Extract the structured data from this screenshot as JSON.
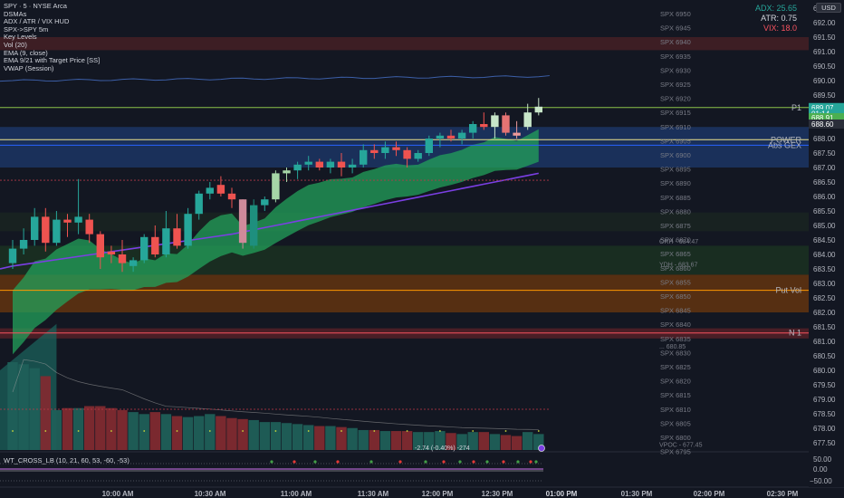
{
  "legend": {
    "title": "SPY · 5 · NYSE Arca",
    "indicators": [
      "DSMAs",
      "ADX / ATR / VIX HUD",
      "SPX->SPY 5m",
      "Key Levels",
      "Vol (20)",
      "EMA (9, close)",
      "EMA 9/21 with Target Price [SS]",
      "VWAP (Session)"
    ]
  },
  "hud": {
    "adx": "ADX: 25.65",
    "atr": "ATR: 0.75",
    "vix": "VIX: 18.0",
    "adx_color": "#26a69a",
    "atr_color": "#d1d4dc",
    "vix_color": "#f7525f"
  },
  "currency_button": "USD",
  "price_axis": [
    "692.50",
    "692.00",
    "691.50",
    "691.00",
    "690.50",
    "690.00",
    "689.50",
    "689.00",
    "688.50",
    "688.00",
    "687.50",
    "687.00",
    "686.50",
    "686.00",
    "685.50",
    "685.00",
    "684.50",
    "684.00",
    "683.50",
    "683.00",
    "682.50",
    "682.00",
    "681.50",
    "681.00",
    "680.50",
    "680.00",
    "679.50",
    "679.00",
    "678.50",
    "678.00",
    "677.50"
  ],
  "spx_labels": [
    "SPX 6950",
    "SPX 6945",
    "SPX 6940",
    "SPX 6935",
    "SPX 6930",
    "SPX 6925",
    "SPX 6920",
    "SPX 6915",
    "SPX 6910",
    "SPX 6905",
    "SPX 6900",
    "SPX 6895",
    "SPX 6890",
    "SPX 6885",
    "SPX 6880",
    "SPX 6875",
    "SPX 6870",
    "SPX 6865",
    "SPX 6860",
    "SPX 6855",
    "SPX 6850",
    "SPX 6845",
    "SPX 6840",
    "SPX 6835",
    "SPX 6830",
    "SPX 6825",
    "SPX 6820",
    "SPX 6815",
    "SPX 6810",
    "SPX 6805",
    "SPX 6800",
    "SPX 6795"
  ],
  "levels": [
    {
      "label": "P1",
      "value": "689.07",
      "price": 689.07,
      "color": "#8bc34a"
    },
    {
      "label": "POWER",
      "value": "687.96",
      "price": 687.96,
      "color": "#f0e68c"
    },
    {
      "label": "Abs GEX",
      "value": "687.77",
      "price": 687.77,
      "color": "#2962ff"
    },
    {
      "label": "Put Vol",
      "value": "682.76",
      "price": 682.76,
      "color": "#ff9800"
    },
    {
      "label": "N 1",
      "value": "681.29",
      "price": 681.29,
      "color": "#f7525f"
    }
  ],
  "price_tags": [
    {
      "value": "689.07",
      "price": 689.07,
      "color": "#26a69a"
    },
    {
      "value": "01:14",
      "price": 688.86,
      "color": "#26a69a"
    },
    {
      "value": "688.91",
      "price": 688.72,
      "color": "#4caf50"
    },
    {
      "value": "688.60",
      "price": 688.5,
      "color": "#2a2e39"
    }
  ],
  "key_level_texts": [
    {
      "text": "ORH - 684.47",
      "price": 684.47
    },
    {
      "text": "YDH - 683.67",
      "price": 683.67
    },
    {
      "text": "... 680.85",
      "price": 680.85
    },
    {
      "text": "VPOC - 677.45",
      "price": 677.45
    }
  ],
  "volume_annotation": "-2.74 (-0.40%) -274",
  "oscillator": {
    "label": "WT_CROSS_LB (10, 21, 60, 53, -60, -53)",
    "axis": [
      "50.00",
      "0.00",
      "−50.00"
    ]
  },
  "time_axis": [
    "10:00 AM",
    "10:30 AM",
    "11:00 AM",
    "11:30 AM",
    "12:00 PM",
    "12:30 PM",
    "01:00 PM",
    "01:30 PM",
    "02:00 PM",
    "02:30 PM"
  ],
  "chart_data": {
    "type": "candlestick",
    "symbol": "SPY",
    "interval": "5",
    "ylim": [
      677.25,
      692.75
    ],
    "candles": [
      {
        "o": 683.7,
        "h": 684.5,
        "l": 683.5,
        "c": 684.2
      },
      {
        "o": 684.2,
        "h": 684.9,
        "l": 684.0,
        "c": 684.5
      },
      {
        "o": 684.5,
        "h": 685.6,
        "l": 684.3,
        "c": 685.3
      },
      {
        "o": 685.3,
        "h": 685.6,
        "l": 684.1,
        "c": 684.4
      },
      {
        "o": 684.4,
        "h": 685.5,
        "l": 684.3,
        "c": 685.2
      },
      {
        "o": 685.2,
        "h": 685.4,
        "l": 684.6,
        "c": 685.1
      },
      {
        "o": 685.1,
        "h": 686.6,
        "l": 684.7,
        "c": 685.3
      },
      {
        "o": 685.2,
        "h": 685.4,
        "l": 684.4,
        "c": 684.7
      },
      {
        "o": 684.7,
        "h": 684.8,
        "l": 683.5,
        "c": 683.9
      },
      {
        "o": 684.1,
        "h": 684.3,
        "l": 683.7,
        "c": 684.0
      },
      {
        "o": 684.0,
        "h": 684.5,
        "l": 683.4,
        "c": 683.7
      },
      {
        "o": 683.6,
        "h": 683.9,
        "l": 683.4,
        "c": 683.8
      },
      {
        "o": 683.8,
        "h": 684.7,
        "l": 683.7,
        "c": 684.6
      },
      {
        "o": 684.6,
        "h": 685.0,
        "l": 683.9,
        "c": 684.0
      },
      {
        "o": 684.0,
        "h": 685.5,
        "l": 683.9,
        "c": 684.9
      },
      {
        "o": 684.9,
        "h": 685.4,
        "l": 684.2,
        "c": 684.3
      },
      {
        "o": 684.3,
        "h": 685.6,
        "l": 684.2,
        "c": 685.4
      },
      {
        "o": 685.4,
        "h": 686.2,
        "l": 685.2,
        "c": 686.1
      },
      {
        "o": 686.1,
        "h": 686.5,
        "l": 685.9,
        "c": 686.3
      },
      {
        "o": 686.4,
        "h": 686.7,
        "l": 686.0,
        "c": 686.1
      },
      {
        "o": 686.1,
        "h": 686.3,
        "l": 685.6,
        "c": 685.9
      },
      {
        "o": 685.9,
        "h": 685.9,
        "l": 684.2,
        "c": 684.4
      },
      {
        "o": 684.3,
        "h": 685.9,
        "l": 684.2,
        "c": 685.7
      },
      {
        "o": 685.7,
        "h": 686.0,
        "l": 685.5,
        "c": 685.9
      },
      {
        "o": 685.9,
        "h": 686.9,
        "l": 685.8,
        "c": 686.8
      },
      {
        "o": 686.8,
        "h": 687.0,
        "l": 686.5,
        "c": 686.9
      },
      {
        "o": 686.9,
        "h": 687.2,
        "l": 686.6,
        "c": 687.1
      },
      {
        "o": 687.1,
        "h": 687.4,
        "l": 686.9,
        "c": 687.2
      },
      {
        "o": 687.2,
        "h": 687.3,
        "l": 686.9,
        "c": 687.0
      },
      {
        "o": 687.0,
        "h": 687.3,
        "l": 686.8,
        "c": 687.2
      },
      {
        "o": 687.2,
        "h": 687.5,
        "l": 686.7,
        "c": 687.0
      },
      {
        "o": 687.0,
        "h": 687.3,
        "l": 686.8,
        "c": 687.1
      },
      {
        "o": 687.1,
        "h": 687.8,
        "l": 687.0,
        "c": 687.6
      },
      {
        "o": 687.6,
        "h": 687.8,
        "l": 687.3,
        "c": 687.5
      },
      {
        "o": 687.5,
        "h": 687.9,
        "l": 687.3,
        "c": 687.7
      },
      {
        "o": 687.7,
        "h": 687.9,
        "l": 687.4,
        "c": 687.6
      },
      {
        "o": 687.6,
        "h": 687.7,
        "l": 687.0,
        "c": 687.3
      },
      {
        "o": 687.3,
        "h": 687.6,
        "l": 687.2,
        "c": 687.5
      },
      {
        "o": 687.5,
        "h": 688.1,
        "l": 687.4,
        "c": 688.0
      },
      {
        "o": 688.0,
        "h": 688.2,
        "l": 687.7,
        "c": 688.1
      },
      {
        "o": 688.1,
        "h": 688.3,
        "l": 687.9,
        "c": 688.0
      },
      {
        "o": 688.0,
        "h": 688.3,
        "l": 687.8,
        "c": 688.2
      },
      {
        "o": 688.2,
        "h": 688.6,
        "l": 688.0,
        "c": 688.5
      },
      {
        "o": 688.5,
        "h": 688.9,
        "l": 688.3,
        "c": 688.4
      },
      {
        "o": 688.4,
        "h": 688.9,
        "l": 688.0,
        "c": 688.8
      },
      {
        "o": 688.8,
        "h": 688.9,
        "l": 688.1,
        "c": 688.2
      },
      {
        "o": 688.2,
        "h": 688.6,
        "l": 688.0,
        "c": 688.1
      },
      {
        "o": 688.4,
        "h": 689.2,
        "l": 688.3,
        "c": 688.9
      },
      {
        "o": 688.9,
        "h": 689.4,
        "l": 688.8,
        "c": 689.1
      }
    ],
    "volume": [
      88,
      86,
      82,
      74,
      40,
      42,
      42,
      44,
      44,
      42,
      40,
      38,
      36,
      38,
      36,
      34,
      33,
      34,
      36,
      34,
      32,
      31,
      30,
      28,
      28,
      27,
      26,
      25,
      24,
      24,
      23,
      22,
      20,
      20,
      19,
      19,
      19,
      18,
      18,
      19,
      17,
      16,
      18,
      18,
      16,
      15,
      14,
      18,
      16
    ]
  }
}
